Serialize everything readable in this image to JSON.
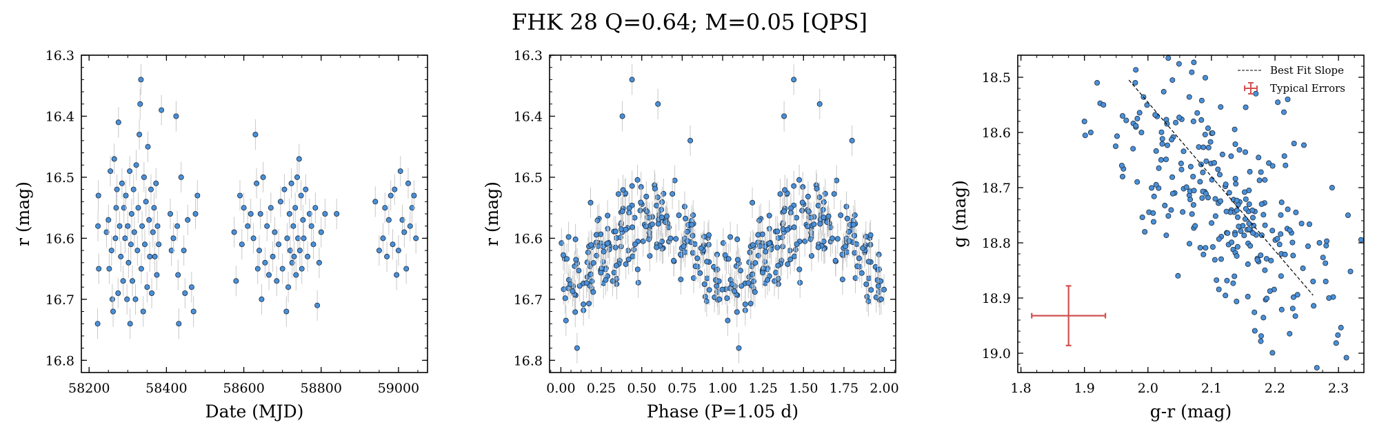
{
  "title": "FHK 28  Q=0.64; M=0.05 [QPS]",
  "colors": {
    "point_fill": "#4a90d9",
    "point_edge": "#1b2a3a",
    "errorbar": "#c8c8c8",
    "typical_error": "#d05050",
    "fit_line": "#000000"
  },
  "chart_data": [
    {
      "type": "scatter",
      "xlabel": "Date (MJD)",
      "ylabel": "r (mag)",
      "xlim": [
        58180,
        59075
      ],
      "ylim": [
        16.82,
        16.3
      ],
      "xticks": [
        58200,
        58400,
        58600,
        58800,
        59000
      ],
      "xtick_labels": [
        "58200",
        "58400",
        "58600",
        "58800",
        "59000"
      ],
      "yticks": [
        16.3,
        16.4,
        16.5,
        16.6,
        16.7,
        16.8
      ],
      "ytick_labels": [
        "16.3",
        "16.4",
        "16.5",
        "16.6",
        "16.7",
        "16.8"
      ],
      "y_error": 0.025,
      "points": [
        [
          58222,
          16.74
        ],
        [
          58223,
          16.58
        ],
        [
          58224,
          16.53
        ],
        [
          58225,
          16.65
        ],
        [
          58245,
          16.59
        ],
        [
          58250,
          16.57
        ],
        [
          58252,
          16.65
        ],
        [
          58255,
          16.49
        ],
        [
          58258,
          16.62
        ],
        [
          58260,
          16.7
        ],
        [
          58262,
          16.72
        ],
        [
          58265,
          16.47
        ],
        [
          58268,
          16.6
        ],
        [
          58270,
          16.55
        ],
        [
          58272,
          16.52
        ],
        [
          58275,
          16.69
        ],
        [
          58276,
          16.41
        ],
        [
          58279,
          16.58
        ],
        [
          58282,
          16.63
        ],
        [
          58285,
          16.51
        ],
        [
          58288,
          16.67
        ],
        [
          58290,
          16.55
        ],
        [
          58293,
          16.6
        ],
        [
          58295,
          16.53
        ],
        [
          58298,
          16.7
        ],
        [
          58300,
          16.58
        ],
        [
          58302,
          16.64
        ],
        [
          58305,
          16.49
        ],
        [
          58306,
          16.74
        ],
        [
          58308,
          16.61
        ],
        [
          58310,
          16.56
        ],
        [
          58312,
          16.67
        ],
        [
          58315,
          16.52
        ],
        [
          58317,
          16.59
        ],
        [
          58320,
          16.7
        ],
        [
          58322,
          16.48
        ],
        [
          58325,
          16.62
        ],
        [
          58327,
          16.55
        ],
        [
          58330,
          16.43
        ],
        [
          58332,
          16.38
        ],
        [
          58334,
          16.34
        ],
        [
          58335,
          16.65
        ],
        [
          58337,
          16.58
        ],
        [
          58340,
          16.72
        ],
        [
          58342,
          16.5
        ],
        [
          58344,
          16.61
        ],
        [
          58347,
          16.54
        ],
        [
          58350,
          16.68
        ],
        [
          58352,
          16.45
        ],
        [
          58355,
          16.57
        ],
        [
          58357,
          16.63
        ],
        [
          58360,
          16.52
        ],
        [
          58362,
          16.69
        ],
        [
          58365,
          16.59
        ],
        [
          58368,
          16.55
        ],
        [
          58370,
          16.63
        ],
        [
          58373,
          16.51
        ],
        [
          58375,
          16.66
        ],
        [
          58377,
          16.58
        ],
        [
          58380,
          16.61
        ],
        [
          58387,
          16.39
        ],
        [
          58410,
          16.56
        ],
        [
          58413,
          16.62
        ],
        [
          58418,
          16.6
        ],
        [
          58425,
          16.4
        ],
        [
          58428,
          16.58
        ],
        [
          58430,
          16.66
        ],
        [
          58432,
          16.74
        ],
        [
          58438,
          16.5
        ],
        [
          58445,
          16.62
        ],
        [
          58448,
          16.69
        ],
        [
          58455,
          16.57
        ],
        [
          58465,
          16.68
        ],
        [
          58470,
          16.72
        ],
        [
          58475,
          16.56
        ],
        [
          58480,
          16.53
        ],
        [
          58575,
          16.59
        ],
        [
          58580,
          16.67
        ],
        [
          58590,
          16.53
        ],
        [
          58595,
          16.61
        ],
        [
          58600,
          16.55
        ],
        [
          58610,
          16.58
        ],
        [
          58618,
          16.56
        ],
        [
          58625,
          16.6
        ],
        [
          58630,
          16.43
        ],
        [
          58633,
          16.51
        ],
        [
          58636,
          16.65
        ],
        [
          58640,
          16.62
        ],
        [
          58643,
          16.56
        ],
        [
          58646,
          16.7
        ],
        [
          58650,
          16.5
        ],
        [
          58655,
          16.64
        ],
        [
          58660,
          16.58
        ],
        [
          58665,
          16.66
        ],
        [
          58670,
          16.55
        ],
        [
          58675,
          16.63
        ],
        [
          58680,
          16.59
        ],
        [
          58685,
          16.67
        ],
        [
          58690,
          16.61
        ],
        [
          58695,
          16.54
        ],
        [
          58700,
          16.65
        ],
        [
          58705,
          16.52
        ],
        [
          58710,
          16.72
        ],
        [
          58712,
          16.6
        ],
        [
          58715,
          16.68
        ],
        [
          58718,
          16.56
        ],
        [
          58720,
          16.62
        ],
        [
          58723,
          16.51
        ],
        [
          58725,
          16.64
        ],
        [
          58728,
          16.58
        ],
        [
          58730,
          16.63
        ],
        [
          58733,
          16.55
        ],
        [
          58735,
          16.66
        ],
        [
          58738,
          16.5
        ],
        [
          58740,
          16.6
        ],
        [
          58743,
          16.47
        ],
        [
          58745,
          16.62
        ],
        [
          58748,
          16.53
        ],
        [
          58750,
          16.65
        ],
        [
          58753,
          16.57
        ],
        [
          58755,
          16.6
        ],
        [
          58760,
          16.52
        ],
        [
          58765,
          16.63
        ],
        [
          58770,
          16.56
        ],
        [
          58775,
          16.58
        ],
        [
          58780,
          16.61
        ],
        [
          58785,
          16.55
        ],
        [
          58790,
          16.71
        ],
        [
          58795,
          16.64
        ],
        [
          58800,
          16.59
        ],
        [
          58810,
          16.56
        ],
        [
          58840,
          16.56
        ],
        [
          58940,
          16.54
        ],
        [
          58950,
          16.62
        ],
        [
          58960,
          16.6
        ],
        [
          58965,
          16.55
        ],
        [
          58970,
          16.63
        ],
        [
          58975,
          16.57
        ],
        [
          58980,
          16.53
        ],
        [
          58985,
          16.61
        ],
        [
          58990,
          16.52
        ],
        [
          58995,
          16.66
        ],
        [
          59000,
          16.62
        ],
        [
          59005,
          16.49
        ],
        [
          59010,
          16.57
        ],
        [
          59015,
          16.59
        ],
        [
          59020,
          16.65
        ],
        [
          59025,
          16.51
        ],
        [
          59030,
          16.58
        ],
        [
          59035,
          16.55
        ],
        [
          59040,
          16.53
        ],
        [
          59045,
          16.6
        ]
      ]
    },
    {
      "type": "scatter",
      "xlabel": "Phase (P=1.05 d)",
      "ylabel": "r (mag)",
      "xlim": [
        -0.07,
        2.07
      ],
      "ylim": [
        16.82,
        16.3
      ],
      "xticks": [
        0.0,
        0.25,
        0.5,
        0.75,
        1.0,
        1.25,
        1.5,
        1.75,
        2.0
      ],
      "xtick_labels": [
        "0.00",
        "0.25",
        "0.50",
        "0.75",
        "1.00",
        "1.25",
        "1.50",
        "1.75",
        "2.00"
      ],
      "yticks": [
        16.3,
        16.4,
        16.5,
        16.6,
        16.7,
        16.8
      ],
      "ytick_labels": [
        "16.3",
        "16.4",
        "16.5",
        "16.6",
        "16.7",
        "16.8"
      ],
      "y_error": 0.025,
      "period_model": {
        "mean": 16.615,
        "amplitude": 0.05,
        "peak_phase": 0.55,
        "seed": 28,
        "n_per_cycle": 220,
        "scatter": 0.035
      },
      "highlight_points": [
        [
          0.1,
          16.78
        ],
        [
          1.1,
          16.78
        ],
        [
          0.44,
          16.34
        ],
        [
          1.44,
          16.34
        ],
        [
          0.38,
          16.4
        ],
        [
          1.38,
          16.4
        ],
        [
          0.6,
          16.38
        ],
        [
          1.6,
          16.38
        ],
        [
          0.8,
          16.44
        ],
        [
          1.8,
          16.44
        ],
        [
          0.98,
          16.7
        ],
        [
          1.98,
          16.7
        ]
      ]
    },
    {
      "type": "scatter",
      "xlabel": "g-r (mag)",
      "ylabel": "g (mag)",
      "xlim": [
        1.795,
        2.34
      ],
      "ylim": [
        19.035,
        18.46
      ],
      "xticks": [
        1.8,
        1.9,
        2.0,
        2.1,
        2.2,
        2.3
      ],
      "xtick_labels": [
        "1.8",
        "1.9",
        "2.0",
        "2.1",
        "2.2",
        "2.3"
      ],
      "yticks": [
        18.5,
        18.6,
        18.7,
        18.8,
        18.9,
        19.0
      ],
      "ytick_labels": [
        "18.5",
        "18.6",
        "18.7",
        "18.8",
        "18.9",
        "19.0"
      ],
      "cloud_model": {
        "center": [
          2.12,
          18.72
        ],
        "slope": 1.4,
        "spread_x": 0.075,
        "spread_perp": 0.06,
        "n": 260,
        "seed": 7
      },
      "extra_points": [
        [
          1.92,
          18.51
        ],
        [
          1.93,
          18.55
        ],
        [
          1.98,
          18.51
        ],
        [
          1.9,
          18.58
        ],
        [
          1.91,
          18.6
        ],
        [
          1.96,
          18.57
        ],
        [
          1.96,
          18.68
        ],
        [
          1.995,
          18.78
        ],
        [
          2.29,
          18.7
        ],
        [
          2.315,
          18.75
        ],
        [
          2.27,
          18.8
        ],
        [
          2.28,
          18.87
        ],
        [
          2.285,
          18.9
        ],
        [
          2.26,
          18.87
        ],
        [
          2.22,
          18.54
        ],
        [
          2.23,
          18.62
        ]
      ],
      "fit_line": {
        "x": [
          1.97,
          2.26
        ],
        "y": [
          18.505,
          18.895
        ]
      },
      "typical_error": {
        "x": 1.875,
        "y": 18.932,
        "xerr": 0.058,
        "yerr": 0.054
      },
      "legend": {
        "position": "top-right",
        "entries": [
          "Best Fit Slope",
          "Typical Errors"
        ]
      }
    }
  ]
}
